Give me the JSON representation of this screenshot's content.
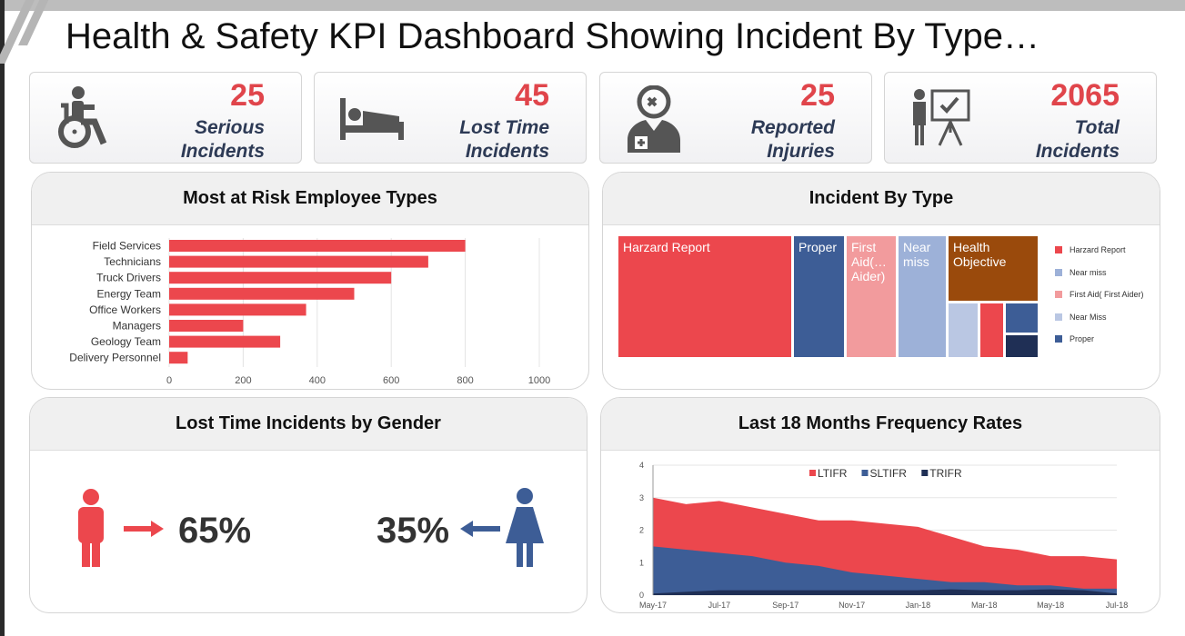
{
  "title": "Health & Safety KPI Dashboard Showing Incident By Type…",
  "kpis": [
    {
      "value": "25",
      "label1": "Serious",
      "label2": "Incidents",
      "icon": "wheelchair-icon"
    },
    {
      "value": "45",
      "label1": "Lost Time",
      "label2": "Incidents",
      "icon": "bed-icon"
    },
    {
      "value": "25",
      "label1": "Reported",
      "label2": "Injuries",
      "icon": "doctor-icon"
    },
    {
      "value": "2065",
      "label1": "Total",
      "label2": "Incidents",
      "icon": "presentation-icon"
    }
  ],
  "colors": {
    "red": "#ec474d",
    "blue": "#3d5d96",
    "lightpink": "#f29b9d",
    "lightblue": "#9db1d8",
    "paleblue": "#bac7e3",
    "brown": "#9a4a0c",
    "navy": "#1f2f55",
    "accent_text": "#2d3a55"
  },
  "panels": {
    "risk_title": "Most at Risk Employee Types",
    "type_title": "Incident By Type",
    "gender_title": "Lost Time Incidents by Gender",
    "freq_title": "Last 18 Months Frequency Rates"
  },
  "gender": {
    "male_pct": "65%",
    "female_pct": "35%"
  },
  "treemap": {
    "cells": [
      {
        "label": "Harzard Report",
        "color": "#ec474d"
      },
      {
        "label": "Proper",
        "color": "#3d5d96"
      },
      {
        "label": "First Aid(… Aider)",
        "color": "#f29b9d"
      },
      {
        "label": "Near miss",
        "color": "#9db1d8"
      },
      {
        "label": "Health Objective",
        "color": "#9a4a0c"
      },
      {
        "label": "",
        "color": "#bac7e3"
      },
      {
        "label": "",
        "color": "#ec474d"
      },
      {
        "label": "",
        "color": "#3d5d96"
      },
      {
        "label": "",
        "color": "#1f2f55"
      }
    ],
    "legend": [
      {
        "label": "Harzard Report",
        "color": "#ec474d"
      },
      {
        "label": "Near miss",
        "color": "#9db1d8"
      },
      {
        "label": "First Aid( First Aider)",
        "color": "#f29b9d"
      },
      {
        "label": "Near Miss",
        "color": "#bac7e3"
      },
      {
        "label": "Proper",
        "color": "#3d5d96"
      }
    ]
  },
  "chart_data": [
    {
      "type": "bar",
      "orientation": "horizontal",
      "categories": [
        "Field Services",
        "Technicians",
        "Truck Drivers",
        "Energy Team",
        "Office Workers",
        "Managers",
        "Geology Team",
        "Delivery Personnel"
      ],
      "values": [
        800,
        700,
        600,
        500,
        370,
        200,
        300,
        50
      ],
      "xlim": [
        0,
        1000
      ],
      "xticks": [
        "0",
        "200",
        "400",
        "600",
        "800",
        "1000"
      ],
      "color": "#ec474d",
      "grid": true
    },
    {
      "type": "area",
      "x": [
        "May-17",
        "Jun-17",
        "Jul-17",
        "Aug-17",
        "Sep-17",
        "Oct-17",
        "Nov-17",
        "Dec-17",
        "Jan-18",
        "Feb-18",
        "Mar-18",
        "Apr-18",
        "May-18",
        "Jun-18",
        "Jul-18"
      ],
      "xticks": [
        "May-17",
        "Jul-17",
        "Sep-17",
        "Nov-17",
        "Jan-18",
        "Mar-18",
        "May-18",
        "Jul-18"
      ],
      "ylim": [
        0,
        4
      ],
      "yticks": [
        "0",
        "1",
        "2",
        "3",
        "4"
      ],
      "legend": "top",
      "grid": true,
      "series": [
        {
          "name": "LTIFR",
          "color": "#ec474d",
          "values": [
            3.0,
            2.8,
            2.9,
            2.7,
            2.5,
            2.3,
            2.3,
            2.2,
            2.1,
            1.8,
            1.5,
            1.4,
            1.2,
            1.2,
            1.1
          ]
        },
        {
          "name": "SLTIFR",
          "color": "#3d5d96",
          "values": [
            1.5,
            1.4,
            1.3,
            1.2,
            1.0,
            0.9,
            0.7,
            0.6,
            0.5,
            0.4,
            0.4,
            0.3,
            0.3,
            0.2,
            0.2
          ]
        },
        {
          "name": "TRIFR",
          "color": "#1f2f55",
          "values": [
            0.05,
            0.1,
            0.15,
            0.15,
            0.15,
            0.15,
            0.15,
            0.15,
            0.15,
            0.18,
            0.15,
            0.15,
            0.18,
            0.15,
            0.05
          ]
        }
      ]
    }
  ]
}
